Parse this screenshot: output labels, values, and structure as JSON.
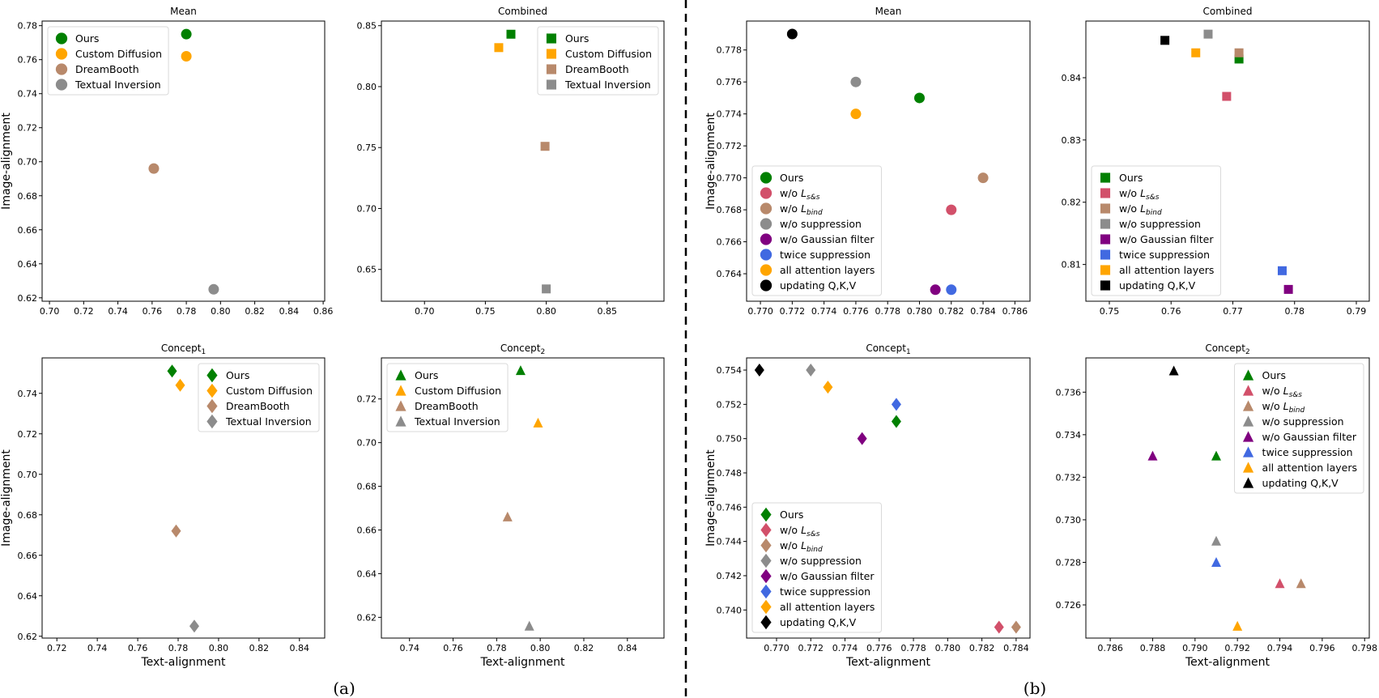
{
  "colors": {
    "Ours": "#008000",
    "Custom Diffusion": "#FFA500",
    "DreamBooth": "#B8896B",
    "Textual Inversion": "#8C8C8C",
    "w/o L_s&s": "#D2506A",
    "w/o L_bind": "#B8896B",
    "w/o suppression": "#8C8C8C",
    "w/o Gaussian filter": "#800080",
    "twice suppression": "#4169E1",
    "all attention layers": "#FFA500",
    "updating Q,K,V": "#000000"
  },
  "sublabels": [
    "(a)",
    "(b)"
  ],
  "chart_data": [
    {
      "id": "a-mean",
      "type": "scatter",
      "marker": "circle",
      "title": "Mean",
      "xlabel": "",
      "ylabel": "Image-alignment",
      "xlim": [
        0.6957,
        0.8609
      ],
      "ylim": [
        0.618,
        0.7827
      ],
      "xticks": [
        "0.70",
        "0.72",
        "0.74",
        "0.76",
        "0.78",
        "0.80",
        "0.82",
        "0.84",
        "0.86"
      ],
      "yticks": [
        "0.62",
        "0.64",
        "0.66",
        "0.68",
        "0.70",
        "0.72",
        "0.74",
        "0.76",
        "0.78"
      ],
      "legend": "upper-left",
      "series": [
        {
          "name": "Ours",
          "x": 0.78,
          "y": 0.775
        },
        {
          "name": "Custom Diffusion",
          "x": 0.78,
          "y": 0.762
        },
        {
          "name": "DreamBooth",
          "x": 0.761,
          "y": 0.696
        },
        {
          "name": "Textual Inversion",
          "x": 0.796,
          "y": 0.625
        }
      ]
    },
    {
      "id": "a-combined",
      "type": "scatter",
      "marker": "square",
      "title": "Combined",
      "xlabel": "",
      "ylabel": "",
      "xlim": [
        0.6646,
        0.8967
      ],
      "ylim": [
        0.6239,
        0.8538
      ],
      "xticks": [
        "0.70",
        "0.75",
        "0.80",
        "0.85"
      ],
      "yticks": [
        "0.65",
        "0.70",
        "0.75",
        "0.80",
        "0.85"
      ],
      "legend": "upper-right",
      "series": [
        {
          "name": "Ours",
          "x": 0.771,
          "y": 0.843
        },
        {
          "name": "Custom Diffusion",
          "x": 0.761,
          "y": 0.832
        },
        {
          "name": "DreamBooth",
          "x": 0.799,
          "y": 0.751
        },
        {
          "name": "Textual Inversion",
          "x": 0.8,
          "y": 0.634
        }
      ]
    },
    {
      "id": "b-mean",
      "type": "scatter",
      "marker": "circle",
      "title": "Mean",
      "xlabel": "",
      "ylabel": "Image-alignment",
      "xlim": [
        0.76913,
        0.78695
      ],
      "ylim": [
        0.76228,
        0.77981
      ],
      "xticks": [
        "0.770",
        "0.772",
        "0.774",
        "0.776",
        "0.778",
        "0.780",
        "0.782",
        "0.784",
        "0.786"
      ],
      "yticks": [
        "0.764",
        "0.766",
        "0.768",
        "0.770",
        "0.772",
        "0.774",
        "0.776",
        "0.778"
      ],
      "legend": "lower-left",
      "series": [
        {
          "name": "Ours",
          "x": 0.78,
          "y": 0.775
        },
        {
          "name": "w/o L_s&s",
          "x": 0.782,
          "y": 0.768
        },
        {
          "name": "w/o L_bind",
          "x": 0.784,
          "y": 0.77
        },
        {
          "name": "w/o suppression",
          "x": 0.776,
          "y": 0.776
        },
        {
          "name": "w/o Gaussian filter",
          "x": 0.781,
          "y": 0.763
        },
        {
          "name": "twice suppression",
          "x": 0.782,
          "y": 0.763
        },
        {
          "name": "all attention layers",
          "x": 0.776,
          "y": 0.774
        },
        {
          "name": "updating Q,K,V",
          "x": 0.772,
          "y": 0.779
        }
      ]
    },
    {
      "id": "b-combined",
      "type": "scatter",
      "marker": "square",
      "title": "Combined",
      "xlabel": "",
      "ylabel": "",
      "xlim": [
        0.7462,
        0.7921
      ],
      "ylim": [
        0.8041,
        0.8491
      ],
      "xticks": [
        "0.75",
        "0.76",
        "0.77",
        "0.78",
        "0.79"
      ],
      "yticks": [
        "0.81",
        "0.82",
        "0.83",
        "0.84"
      ],
      "legend": "lower-left",
      "series": [
        {
          "name": "Ours",
          "x": 0.771,
          "y": 0.843
        },
        {
          "name": "w/o L_s&s",
          "x": 0.769,
          "y": 0.837
        },
        {
          "name": "w/o L_bind",
          "x": 0.771,
          "y": 0.844
        },
        {
          "name": "w/o suppression",
          "x": 0.766,
          "y": 0.847
        },
        {
          "name": "w/o Gaussian filter",
          "x": 0.779,
          "y": 0.806
        },
        {
          "name": "twice suppression",
          "x": 0.778,
          "y": 0.809
        },
        {
          "name": "all attention layers",
          "x": 0.764,
          "y": 0.844
        },
        {
          "name": "updating Q,K,V",
          "x": 0.759,
          "y": 0.846
        }
      ]
    },
    {
      "id": "a-concept1",
      "type": "scatter",
      "marker": "diamond",
      "title": "Concept",
      "title_sub": "1",
      "xlabel": "Text-alignment",
      "ylabel": "Image-alignment",
      "xlim": [
        0.7127,
        0.8525
      ],
      "ylim": [
        0.6191,
        0.7575
      ],
      "xticks": [
        "0.72",
        "0.74",
        "0.76",
        "0.78",
        "0.80",
        "0.82",
        "0.84"
      ],
      "yticks": [
        "0.62",
        "0.64",
        "0.66",
        "0.68",
        "0.70",
        "0.72",
        "0.74"
      ],
      "legend": "upper-right",
      "series": [
        {
          "name": "Ours",
          "x": 0.777,
          "y": 0.751
        },
        {
          "name": "Custom Diffusion",
          "x": 0.781,
          "y": 0.744
        },
        {
          "name": "DreamBooth",
          "x": 0.779,
          "y": 0.672
        },
        {
          "name": "Textual Inversion",
          "x": 0.788,
          "y": 0.625
        }
      ]
    },
    {
      "id": "a-concept2",
      "type": "scatter",
      "marker": "triangle",
      "title": "Concept",
      "title_sub": "2",
      "xlabel": "Text-alignment",
      "ylabel": "",
      "xlim": [
        0.7271,
        0.8568
      ],
      "ylim": [
        0.6105,
        0.7388
      ],
      "xticks": [
        "0.74",
        "0.76",
        "0.78",
        "0.80",
        "0.82",
        "0.84"
      ],
      "yticks": [
        "0.62",
        "0.64",
        "0.66",
        "0.68",
        "0.70",
        "0.72"
      ],
      "legend": "upper-left",
      "series": [
        {
          "name": "Ours",
          "x": 0.791,
          "y": 0.733
        },
        {
          "name": "Custom Diffusion",
          "x": 0.799,
          "y": 0.709
        },
        {
          "name": "DreamBooth",
          "x": 0.785,
          "y": 0.666
        },
        {
          "name": "Textual Inversion",
          "x": 0.795,
          "y": 0.616
        }
      ]
    },
    {
      "id": "b-concept1",
      "type": "scatter",
      "marker": "diamond",
      "title": "Concept",
      "title_sub": "1",
      "xlabel": "Text-alignment",
      "ylabel": "Image-alignment",
      "xlim": [
        0.76825,
        0.78481
      ],
      "ylim": [
        0.73836,
        0.75471
      ],
      "xticks": [
        "0.770",
        "0.772",
        "0.774",
        "0.776",
        "0.778",
        "0.780",
        "0.782",
        "0.784"
      ],
      "yticks": [
        "0.740",
        "0.742",
        "0.744",
        "0.746",
        "0.748",
        "0.750",
        "0.752",
        "0.754"
      ],
      "legend": "lower-left",
      "series": [
        {
          "name": "Ours",
          "x": 0.777,
          "y": 0.751
        },
        {
          "name": "w/o L_s&s",
          "x": 0.783,
          "y": 0.739
        },
        {
          "name": "w/o L_bind",
          "x": 0.784,
          "y": 0.739
        },
        {
          "name": "w/o suppression",
          "x": 0.772,
          "y": 0.754
        },
        {
          "name": "w/o Gaussian filter",
          "x": 0.775,
          "y": 0.75
        },
        {
          "name": "twice suppression",
          "x": 0.777,
          "y": 0.752
        },
        {
          "name": "all attention layers",
          "x": 0.773,
          "y": 0.753
        },
        {
          "name": "updating Q,K,V",
          "x": 0.769,
          "y": 0.754
        }
      ]
    },
    {
      "id": "b-concept2",
      "type": "scatter",
      "marker": "triangle",
      "title": "Concept",
      "title_sub": "2",
      "xlabel": "Text-alignment",
      "ylabel": "",
      "xlim": [
        0.78485,
        0.79822
      ],
      "ylim": [
        0.72444,
        0.73761
      ],
      "xticks": [
        "0.786",
        "0.788",
        "0.790",
        "0.792",
        "0.794",
        "0.796",
        "0.798"
      ],
      "yticks": [
        "0.726",
        "0.728",
        "0.730",
        "0.732",
        "0.734",
        "0.736"
      ],
      "legend": "upper-right",
      "series": [
        {
          "name": "Ours",
          "x": 0.791,
          "y": 0.733
        },
        {
          "name": "w/o L_s&s",
          "x": 0.794,
          "y": 0.727
        },
        {
          "name": "w/o L_bind",
          "x": 0.795,
          "y": 0.727
        },
        {
          "name": "w/o suppression",
          "x": 0.791,
          "y": 0.729
        },
        {
          "name": "w/o Gaussian filter",
          "x": 0.788,
          "y": 0.733
        },
        {
          "name": "twice suppression",
          "x": 0.791,
          "y": 0.728
        },
        {
          "name": "all attention layers",
          "x": 0.792,
          "y": 0.725
        },
        {
          "name": "updating Q,K,V",
          "x": 0.789,
          "y": 0.737
        }
      ]
    }
  ]
}
